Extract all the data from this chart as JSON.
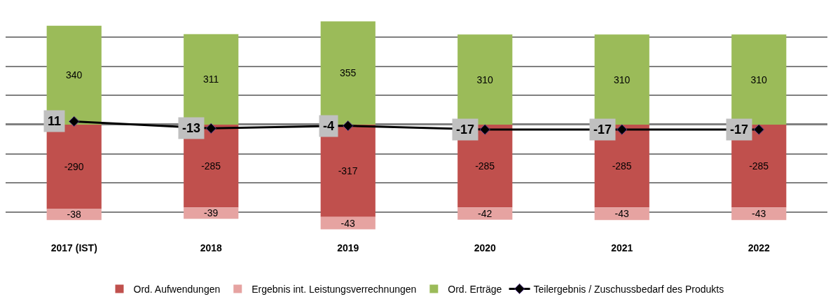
{
  "chart_data": {
    "type": "bar",
    "stacked": true,
    "categories": [
      "2017 (IST)",
      "2018",
      "2019",
      "2020",
      "2021",
      "2022"
    ],
    "series": [
      {
        "name": "Ord. Aufwendungen",
        "color": "#c0504d",
        "values": [
          -290,
          -285,
          -317,
          -285,
          -285,
          -285
        ]
      },
      {
        "name": "Ergebnis int. Leistungsverrechnungen",
        "color": "#e6a3a1",
        "values": [
          -38,
          -39,
          -43,
          -42,
          -43,
          -43
        ]
      },
      {
        "name": "Ord. Erträge",
        "color": "#9bbb59",
        "values": [
          340,
          311,
          355,
          310,
          310,
          310
        ]
      },
      {
        "name": "Teilergebnis / Zuschussbedarf des Produkts",
        "type": "line",
        "color": "#000000",
        "marker": "diamond",
        "values": [
          11,
          -13,
          -4,
          -17,
          -17,
          -17
        ]
      }
    ],
    "tick_labels": "x",
    "grid": "y",
    "legend": "bottom",
    "data_labels": true
  }
}
